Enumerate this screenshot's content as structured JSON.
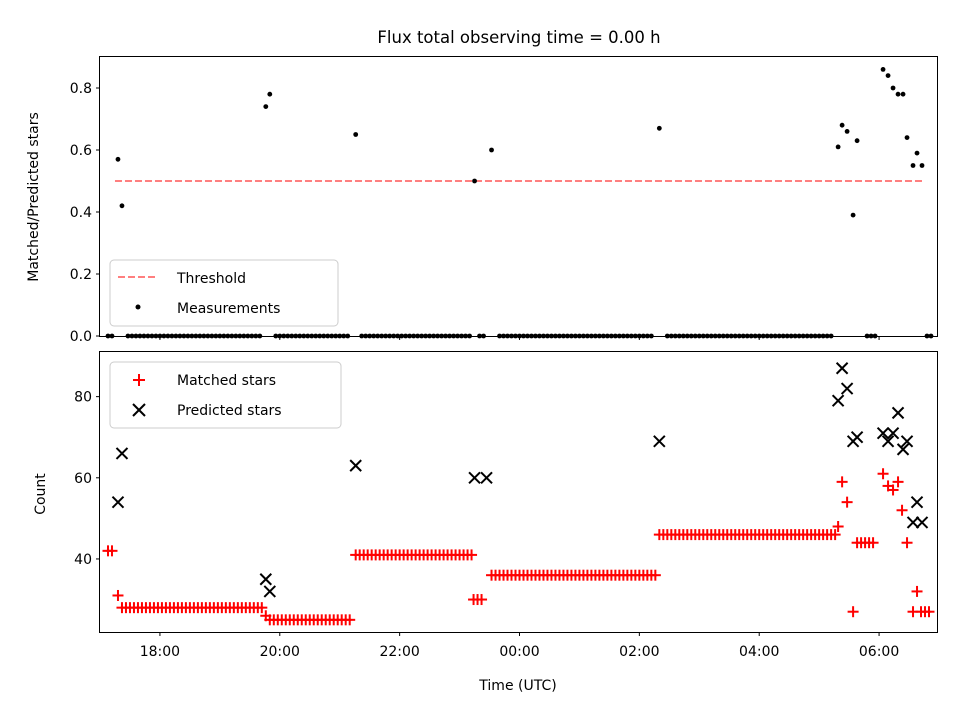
{
  "chart_data": [
    {
      "type": "scatter",
      "title": "Flux total observing time = 0.00 h",
      "xlabel": "",
      "ylabel": "Matched/Predicted stars",
      "ylim": [
        0,
        0.9
      ],
      "yticks": [
        "0.0",
        "0.2",
        "0.4",
        "0.6",
        "0.8"
      ],
      "xlim": [
        "17:00",
        "06:58"
      ],
      "grid": false,
      "legend_position": "lower-left",
      "series": [
        {
          "name": "Threshold",
          "kind": "dashed-line",
          "color": "#ff7f7f",
          "x": [
            "17:15",
            "06:45"
          ],
          "y": [
            0.5,
            0.5
          ]
        },
        {
          "name": "Measurements",
          "kind": "dot",
          "color": "#000000",
          "points": [
            [
              "17:18",
              0.57
            ],
            [
              "17:22",
              0.42
            ],
            [
              "19:46",
              0.74
            ],
            [
              "19:50",
              0.78
            ],
            [
              "21:16",
              0.65
            ],
            [
              "23:15",
              0.5
            ],
            [
              "23:32",
              0.6
            ],
            [
              "02:20",
              0.67
            ],
            [
              "05:19",
              0.61
            ],
            [
              "05:23",
              0.68
            ],
            [
              "05:28",
              0.66
            ],
            [
              "05:34",
              0.39
            ],
            [
              "05:38",
              0.63
            ],
            [
              "06:04",
              0.86
            ],
            [
              "06:09",
              0.84
            ],
            [
              "06:14",
              0.8
            ],
            [
              "06:19",
              0.78
            ],
            [
              "06:24",
              0.78
            ],
            [
              "06:28",
              0.64
            ],
            [
              "06:34",
              0.55
            ],
            [
              "06:38",
              0.59
            ],
            [
              "06:43",
              0.55
            ],
            [
              "17:08",
              0.0
            ],
            [
              "17:12",
              0.0
            ],
            [
              "17:28",
              0.0
            ],
            [
              "17:32",
              0.0
            ],
            [
              "17:36",
              0.0
            ],
            [
              "17:40",
              0.0
            ],
            [
              "17:44",
              0.0
            ],
            [
              "17:48",
              0.0
            ],
            [
              "17:52",
              0.0
            ],
            [
              "17:56",
              0.0
            ],
            [
              "18:00",
              0.0
            ],
            [
              "18:04",
              0.0
            ],
            [
              "18:08",
              0.0
            ],
            [
              "18:12",
              0.0
            ],
            [
              "18:16",
              0.0
            ],
            [
              "18:20",
              0.0
            ],
            [
              "18:24",
              0.0
            ],
            [
              "18:28",
              0.0
            ],
            [
              "18:32",
              0.0
            ],
            [
              "18:36",
              0.0
            ],
            [
              "18:40",
              0.0
            ],
            [
              "18:44",
              0.0
            ],
            [
              "18:48",
              0.0
            ],
            [
              "18:52",
              0.0
            ],
            [
              "18:56",
              0.0
            ],
            [
              "19:00",
              0.0
            ],
            [
              "19:04",
              0.0
            ],
            [
              "19:08",
              0.0
            ],
            [
              "19:12",
              0.0
            ],
            [
              "19:16",
              0.0
            ],
            [
              "19:20",
              0.0
            ],
            [
              "19:24",
              0.0
            ],
            [
              "19:28",
              0.0
            ],
            [
              "19:32",
              0.0
            ],
            [
              "19:36",
              0.0
            ],
            [
              "19:40",
              0.0
            ],
            [
              "19:56",
              0.0
            ],
            [
              "20:00",
              0.0
            ],
            [
              "20:04",
              0.0
            ],
            [
              "20:08",
              0.0
            ],
            [
              "20:12",
              0.0
            ],
            [
              "20:16",
              0.0
            ],
            [
              "20:20",
              0.0
            ],
            [
              "20:24",
              0.0
            ],
            [
              "20:28",
              0.0
            ],
            [
              "20:32",
              0.0
            ],
            [
              "20:36",
              0.0
            ],
            [
              "20:40",
              0.0
            ],
            [
              "20:44",
              0.0
            ],
            [
              "20:48",
              0.0
            ],
            [
              "20:52",
              0.0
            ],
            [
              "20:56",
              0.0
            ],
            [
              "21:00",
              0.0
            ],
            [
              "21:04",
              0.0
            ],
            [
              "21:08",
              0.0
            ],
            [
              "21:22",
              0.0
            ],
            [
              "21:26",
              0.0
            ],
            [
              "21:30",
              0.0
            ],
            [
              "21:34",
              0.0
            ],
            [
              "21:38",
              0.0
            ],
            [
              "21:42",
              0.0
            ],
            [
              "21:46",
              0.0
            ],
            [
              "21:50",
              0.0
            ],
            [
              "21:54",
              0.0
            ],
            [
              "21:58",
              0.0
            ],
            [
              "22:02",
              0.0
            ],
            [
              "22:06",
              0.0
            ],
            [
              "22:10",
              0.0
            ],
            [
              "22:14",
              0.0
            ],
            [
              "22:18",
              0.0
            ],
            [
              "22:22",
              0.0
            ],
            [
              "22:26",
              0.0
            ],
            [
              "22:30",
              0.0
            ],
            [
              "22:34",
              0.0
            ],
            [
              "22:38",
              0.0
            ],
            [
              "22:42",
              0.0
            ],
            [
              "22:46",
              0.0
            ],
            [
              "22:50",
              0.0
            ],
            [
              "22:54",
              0.0
            ],
            [
              "22:58",
              0.0
            ],
            [
              "23:02",
              0.0
            ],
            [
              "23:06",
              0.0
            ],
            [
              "23:10",
              0.0
            ],
            [
              "23:20",
              0.0
            ],
            [
              "23:24",
              0.0
            ],
            [
              "23:40",
              0.0
            ],
            [
              "23:44",
              0.0
            ],
            [
              "23:48",
              0.0
            ],
            [
              "23:52",
              0.0
            ],
            [
              "23:56",
              0.0
            ],
            [
              "00:00",
              0.0
            ],
            [
              "00:04",
              0.0
            ],
            [
              "00:08",
              0.0
            ],
            [
              "00:12",
              0.0
            ],
            [
              "00:16",
              0.0
            ],
            [
              "00:20",
              0.0
            ],
            [
              "00:24",
              0.0
            ],
            [
              "00:28",
              0.0
            ],
            [
              "00:32",
              0.0
            ],
            [
              "00:36",
              0.0
            ],
            [
              "00:40",
              0.0
            ],
            [
              "00:44",
              0.0
            ],
            [
              "00:48",
              0.0
            ],
            [
              "00:52",
              0.0
            ],
            [
              "00:56",
              0.0
            ],
            [
              "01:00",
              0.0
            ],
            [
              "01:04",
              0.0
            ],
            [
              "01:08",
              0.0
            ],
            [
              "01:12",
              0.0
            ],
            [
              "01:16",
              0.0
            ],
            [
              "01:20",
              0.0
            ],
            [
              "01:24",
              0.0
            ],
            [
              "01:28",
              0.0
            ],
            [
              "01:32",
              0.0
            ],
            [
              "01:36",
              0.0
            ],
            [
              "01:40",
              0.0
            ],
            [
              "01:44",
              0.0
            ],
            [
              "01:48",
              0.0
            ],
            [
              "01:52",
              0.0
            ],
            [
              "01:56",
              0.0
            ],
            [
              "02:00",
              0.0
            ],
            [
              "02:04",
              0.0
            ],
            [
              "02:08",
              0.0
            ],
            [
              "02:12",
              0.0
            ],
            [
              "02:28",
              0.0
            ],
            [
              "02:32",
              0.0
            ],
            [
              "02:36",
              0.0
            ],
            [
              "02:40",
              0.0
            ],
            [
              "02:44",
              0.0
            ],
            [
              "02:48",
              0.0
            ],
            [
              "02:52",
              0.0
            ],
            [
              "02:56",
              0.0
            ],
            [
              "03:00",
              0.0
            ],
            [
              "03:04",
              0.0
            ],
            [
              "03:08",
              0.0
            ],
            [
              "03:12",
              0.0
            ],
            [
              "03:16",
              0.0
            ],
            [
              "03:20",
              0.0
            ],
            [
              "03:24",
              0.0
            ],
            [
              "03:28",
              0.0
            ],
            [
              "03:32",
              0.0
            ],
            [
              "03:36",
              0.0
            ],
            [
              "03:40",
              0.0
            ],
            [
              "03:44",
              0.0
            ],
            [
              "03:48",
              0.0
            ],
            [
              "03:52",
              0.0
            ],
            [
              "03:56",
              0.0
            ],
            [
              "04:00",
              0.0
            ],
            [
              "04:04",
              0.0
            ],
            [
              "04:08",
              0.0
            ],
            [
              "04:12",
              0.0
            ],
            [
              "04:16",
              0.0
            ],
            [
              "04:20",
              0.0
            ],
            [
              "04:24",
              0.0
            ],
            [
              "04:28",
              0.0
            ],
            [
              "04:32",
              0.0
            ],
            [
              "04:36",
              0.0
            ],
            [
              "04:40",
              0.0
            ],
            [
              "04:44",
              0.0
            ],
            [
              "04:48",
              0.0
            ],
            [
              "04:52",
              0.0
            ],
            [
              "04:56",
              0.0
            ],
            [
              "05:00",
              0.0
            ],
            [
              "05:04",
              0.0
            ],
            [
              "05:08",
              0.0
            ],
            [
              "05:12",
              0.0
            ],
            [
              "05:48",
              0.0
            ],
            [
              "05:52",
              0.0
            ],
            [
              "05:56",
              0.0
            ],
            [
              "06:48",
              0.0
            ],
            [
              "06:52",
              0.0
            ]
          ]
        }
      ]
    },
    {
      "type": "scatter",
      "title": "",
      "xlabel": "Time (UTC)",
      "ylabel": "Count",
      "ylim": [
        22,
        91
      ],
      "yticks": [
        "40",
        "60",
        "80"
      ],
      "xlim": [
        "17:00",
        "06:58"
      ],
      "xticks": [
        "18:00",
        "20:00",
        "22:00",
        "00:00",
        "02:00",
        "04:00",
        "06:00"
      ],
      "grid": false,
      "legend_position": "upper-left",
      "series": [
        {
          "name": "Matched stars",
          "kind": "plus",
          "color": "#ff0000",
          "runs": [
            {
              "from": "17:08",
              "to": "17:12",
              "y": 42
            },
            {
              "from": "17:18",
              "to": "17:18",
              "y": 31
            },
            {
              "from": "17:22",
              "to": "19:42",
              "y": 28
            },
            {
              "from": "19:46",
              "to": "19:46",
              "y": 26
            },
            {
              "from": "19:50",
              "to": "21:12",
              "y": 25
            },
            {
              "from": "21:16",
              "to": "23:12",
              "y": 41
            },
            {
              "from": "23:14",
              "to": "23:24",
              "y": 30
            },
            {
              "from": "23:32",
              "to": "02:16",
              "y": 36
            },
            {
              "from": "02:20",
              "to": "05:16",
              "y": 46
            },
            {
              "from": "05:19",
              "to": "05:19",
              "y": 48
            },
            {
              "from": "05:23",
              "to": "05:23",
              "y": 59
            },
            {
              "from": "05:28",
              "to": "05:28",
              "y": 54
            },
            {
              "from": "05:34",
              "to": "05:34",
              "y": 27
            },
            {
              "from": "05:38",
              "to": "05:56",
              "y": 44
            },
            {
              "from": "06:04",
              "to": "06:04",
              "y": 61
            },
            {
              "from": "06:09",
              "to": "06:09",
              "y": 58
            },
            {
              "from": "06:14",
              "to": "06:14",
              "y": 57
            },
            {
              "from": "06:19",
              "to": "06:19",
              "y": 59
            },
            {
              "from": "06:23",
              "to": "06:23",
              "y": 52
            },
            {
              "from": "06:28",
              "to": "06:28",
              "y": 44
            },
            {
              "from": "06:34",
              "to": "06:34",
              "y": 27
            },
            {
              "from": "06:38",
              "to": "06:38",
              "y": 32
            },
            {
              "from": "06:42",
              "to": "06:52",
              "y": 27
            }
          ]
        },
        {
          "name": "Predicted stars",
          "kind": "x",
          "color": "#000000",
          "points": [
            [
              "17:18",
              54
            ],
            [
              "17:22",
              66
            ],
            [
              "19:46",
              35
            ],
            [
              "19:50",
              32
            ],
            [
              "21:16",
              63
            ],
            [
              "23:15",
              60
            ],
            [
              "23:27",
              60
            ],
            [
              "02:20",
              69
            ],
            [
              "05:19",
              79
            ],
            [
              "05:23",
              87
            ],
            [
              "05:28",
              82
            ],
            [
              "05:34",
              69
            ],
            [
              "05:38",
              70
            ],
            [
              "06:04",
              71
            ],
            [
              "06:09",
              69
            ],
            [
              "06:14",
              71
            ],
            [
              "06:19",
              76
            ],
            [
              "06:24",
              67
            ],
            [
              "06:28",
              69
            ],
            [
              "06:34",
              49
            ],
            [
              "06:38",
              54
            ],
            [
              "06:43",
              49
            ]
          ]
        }
      ]
    }
  ]
}
